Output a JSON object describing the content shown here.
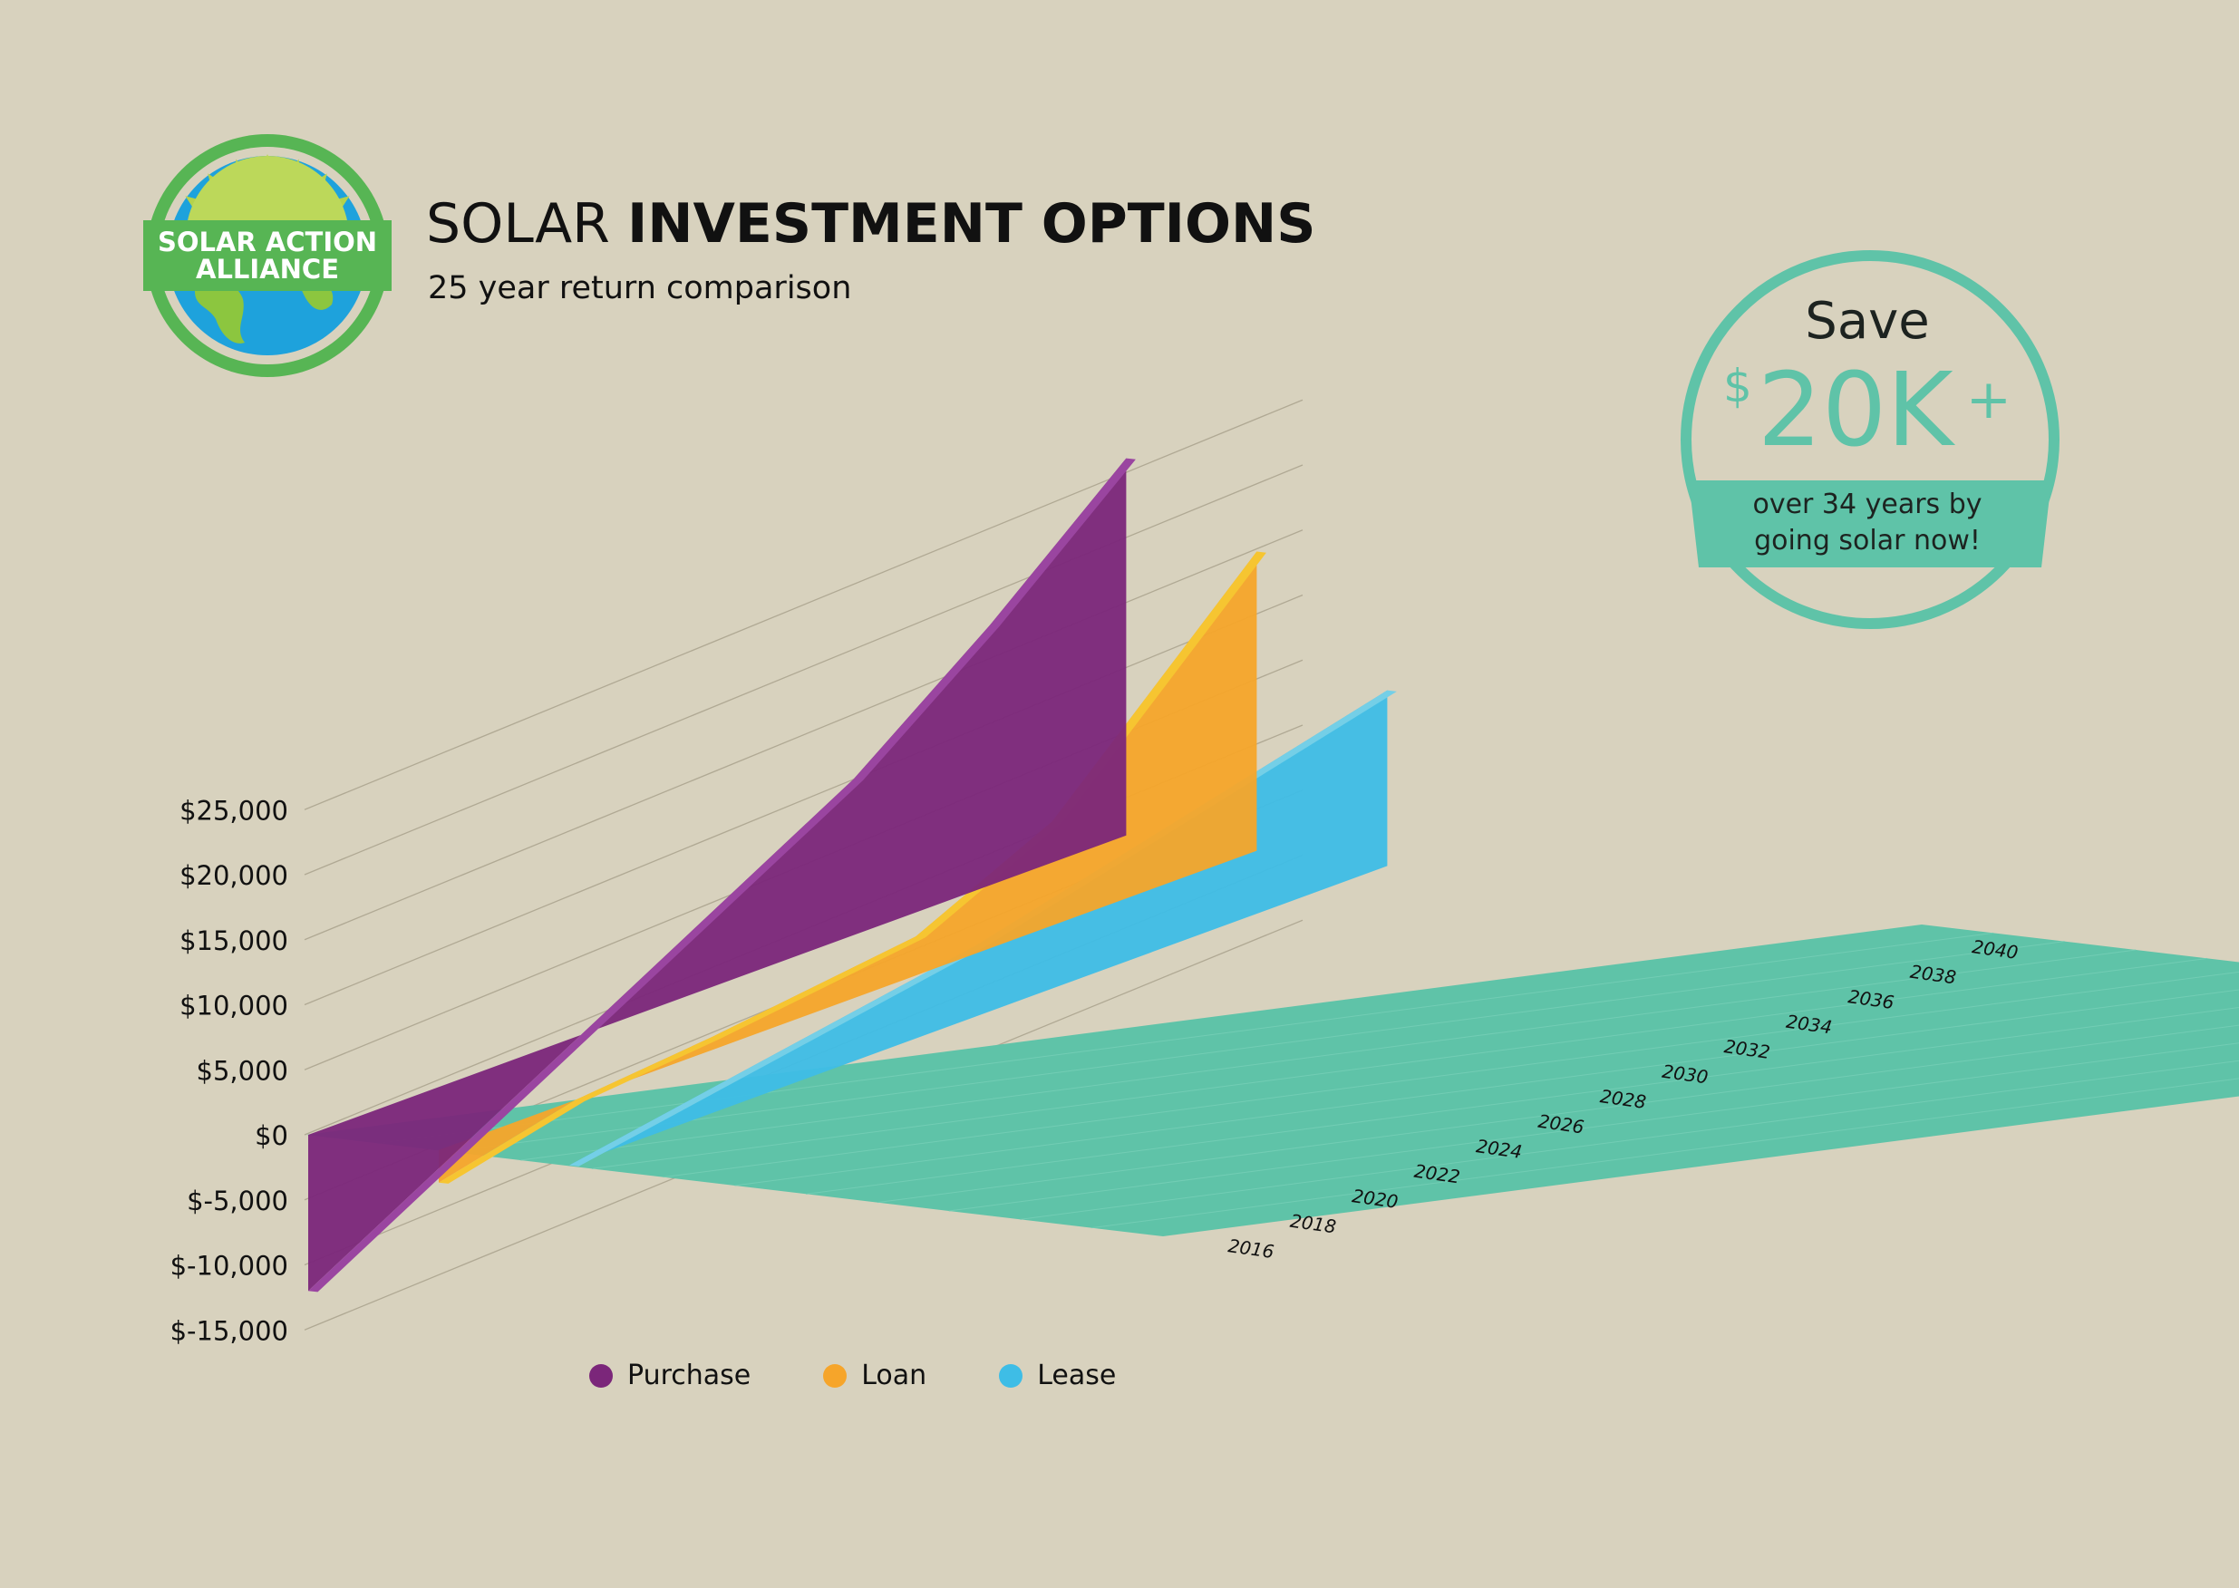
{
  "header": {
    "title_light": "SOLAR",
    "title_bold": "INVESTMENT OPTIONS",
    "subtitle": "25 year return comparison"
  },
  "logo": {
    "text_line1": "SOLAR ACTION",
    "text_line2": "ALLIANCE",
    "icon": "sun-globe-icon"
  },
  "callout": {
    "word": "Save",
    "currency": "$",
    "amount": "20K",
    "plus": "+",
    "note_line1": "over 34 years by",
    "note_line2": "going solar now!"
  },
  "colors": {
    "background": "#d8d2be",
    "floor": "#5fc3a8",
    "purchase": "#7b267a",
    "purchase_top": "#9a45a0",
    "loan": "#f6a52a",
    "loan_top": "#f6c531",
    "lease": "#3ebde6",
    "lease_top": "#74cfe7",
    "accent": "#5fc3a8"
  },
  "chart_data": {
    "type": "area",
    "title": "SOLAR INVESTMENT OPTIONS",
    "subtitle": "25 year return comparison",
    "ylim": [
      -15000,
      25000
    ],
    "y_ticks": [
      "$-15,000",
      "$-10,000",
      "$-5,000",
      "$0",
      "$5,000",
      "$10,000",
      "$15,000",
      "$20,000",
      "$25,000"
    ],
    "y_tick_values": [
      -15000,
      -10000,
      -5000,
      0,
      5000,
      10000,
      15000,
      20000,
      25000
    ],
    "x_ticks": [
      "2016",
      "2018",
      "2020",
      "2022",
      "2024",
      "2026",
      "2028",
      "2030",
      "2032",
      "2034",
      "2036",
      "2038",
      "2040"
    ],
    "x_range": [
      2016,
      2040
    ],
    "series": [
      {
        "name": "Purchase",
        "x": [
          2016,
          2024,
          2032,
          2036,
          2040
        ],
        "values": [
          -12000,
          0,
          12000,
          20000,
          29000
        ]
      },
      {
        "name": "Loan",
        "x": [
          2016,
          2020,
          2024,
          2030,
          2034,
          2040
        ],
        "values": [
          -2500,
          0,
          1000,
          3000,
          8000,
          23000
        ]
      },
      {
        "name": "Lease",
        "x": [
          2016,
          2028,
          2040
        ],
        "values": [
          0,
          5500,
          13500
        ]
      }
    ],
    "legend": [
      "Purchase",
      "Loan",
      "Lease"
    ],
    "legend_position": "bottom",
    "grid": true
  }
}
